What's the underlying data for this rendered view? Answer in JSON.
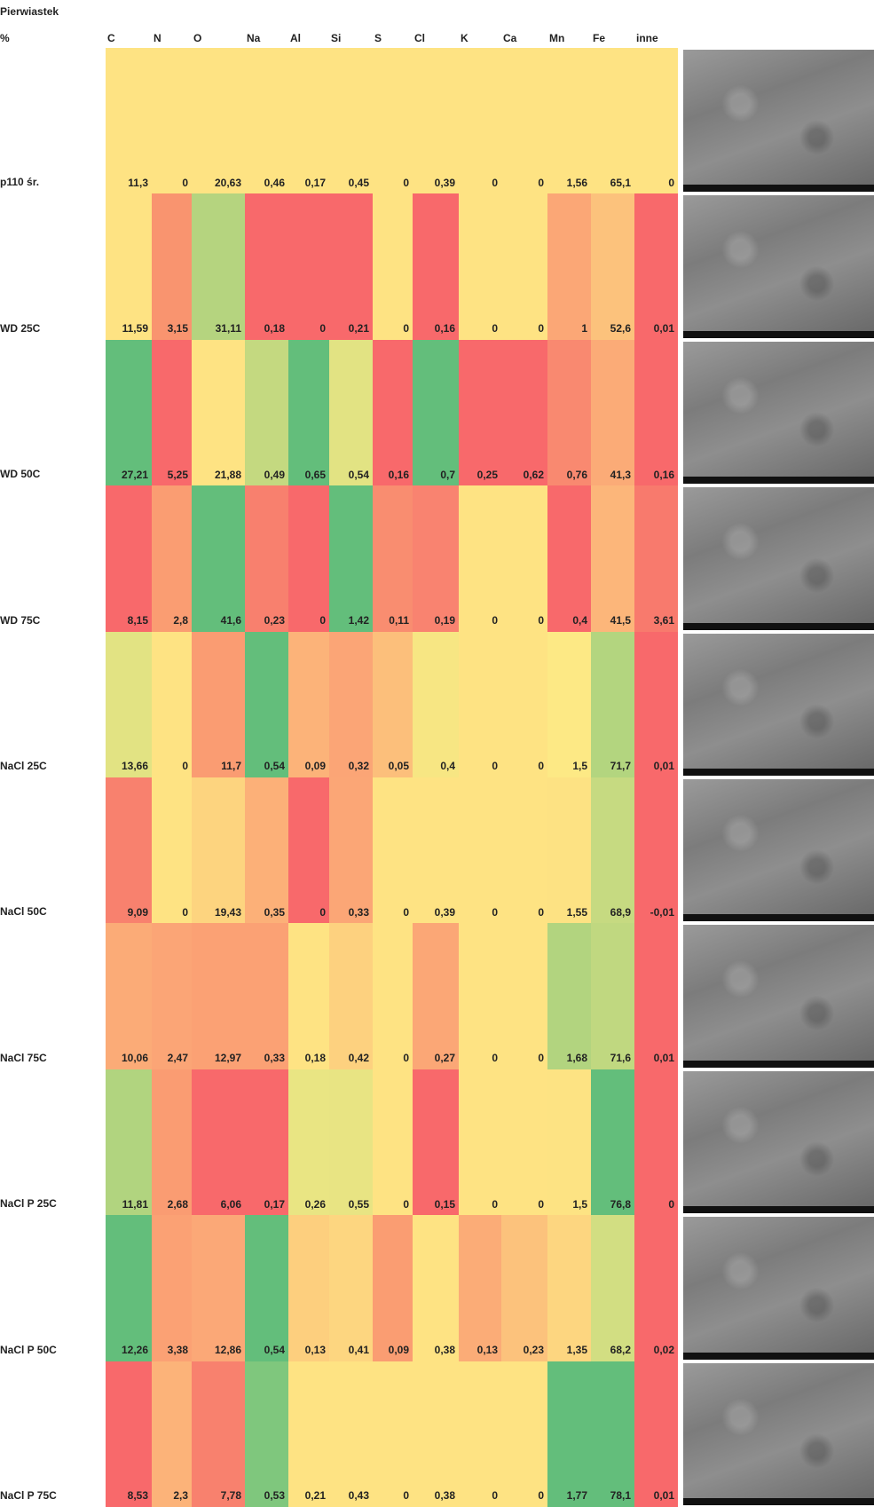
{
  "table": {
    "header": {
      "title": "Pierwiastek",
      "unit": "%",
      "columns": [
        "C",
        "N",
        "O",
        "Na",
        "Al",
        "Si",
        "S",
        "Cl",
        "K",
        "Ca",
        "Mn",
        "Fe",
        "inne"
      ]
    },
    "rows": [
      {
        "label": "p110 śr.",
        "cells": [
          "11,3",
          "0",
          "20,63",
          "0,46",
          "0,17",
          "0,45",
          "0",
          "0,39",
          "0",
          "0",
          "1,56",
          "65,1",
          "0"
        ],
        "colors": [
          "#fee383",
          "#fee383",
          "#fee383",
          "#fee383",
          "#fee383",
          "#fee383",
          "#fee383",
          "#fee383",
          "#fee383",
          "#fee383",
          "#fee383",
          "#fee383",
          "#fee383"
        ]
      },
      {
        "label": "WD 25C",
        "cells": [
          "11,59",
          "3,15",
          "31,11",
          "0,18",
          "0",
          "0,21",
          "0",
          "0,16",
          "0",
          "0",
          "1",
          "52,6",
          "0,01"
        ],
        "colors": [
          "#fee383",
          "#f9946f",
          "#b5d47f",
          "#f8696b",
          "#f8696b",
          "#f8696b",
          "#fee383",
          "#f8696b",
          "#fee383",
          "#fee383",
          "#fba776",
          "#fcc27c",
          "#f8696b"
        ]
      },
      {
        "label": "WD 50C",
        "cells": [
          "27,21",
          "5,25",
          "21,88",
          "0,49",
          "0,65",
          "0,54",
          "0,16",
          "0,7",
          "0,25",
          "0,62",
          "0,76",
          "41,3",
          "0,16"
        ],
        "colors": [
          "#63be7b",
          "#f8696b",
          "#fee383",
          "#c4d980",
          "#63be7b",
          "#e2e383",
          "#f8696b",
          "#63be7b",
          "#f8696b",
          "#f8696b",
          "#f98970",
          "#fbab77",
          "#f8696b"
        ]
      },
      {
        "label": "WD 75C",
        "cells": [
          "8,15",
          "2,8",
          "41,6",
          "0,23",
          "0",
          "1,42",
          "0,11",
          "0,19",
          "0",
          "0",
          "0,4",
          "41,5",
          "3,61"
        ],
        "colors": [
          "#f8696b",
          "#fa9d72",
          "#63be7b",
          "#f8806e",
          "#f8696b",
          "#63be7b",
          "#f98d70",
          "#f98370",
          "#fee383",
          "#fee383",
          "#f8696b",
          "#fcb67a",
          "#f87a6d"
        ]
      },
      {
        "label": "NaCl 25C",
        "cells": [
          "13,66",
          "0",
          "11,7",
          "0,54",
          "0,09",
          "0,32",
          "0,05",
          "0,4",
          "0",
          "0",
          "1,5",
          "71,7",
          "0,01"
        ],
        "colors": [
          "#e2e383",
          "#fee383",
          "#fa9c72",
          "#63be7b",
          "#fcb379",
          "#fba576",
          "#fcbf7b",
          "#f7e683",
          "#fee383",
          "#fee383",
          "#fde985",
          "#b3d57f",
          "#f8696b"
        ]
      },
      {
        "label": "NaCl 50C",
        "cells": [
          "9,09",
          "0",
          "19,43",
          "0,35",
          "0",
          "0,33",
          "0",
          "0,39",
          "0",
          "0",
          "1,55",
          "68,9",
          "-0,01"
        ],
        "colors": [
          "#f8816e",
          "#fee383",
          "#fdd47f",
          "#fcb078",
          "#f8696b",
          "#fba676",
          "#fee383",
          "#fee383",
          "#fee383",
          "#fee383",
          "#fde283",
          "#c6da81",
          "#f8696b"
        ]
      },
      {
        "label": "NaCl 75C",
        "cells": [
          "10,06",
          "2,47",
          "12,97",
          "0,33",
          "0,18",
          "0,42",
          "0",
          "0,27",
          "0",
          "0",
          "1,68",
          "71,6",
          "0,01"
        ],
        "colors": [
          "#fbab77",
          "#fba576",
          "#fba174",
          "#fba174",
          "#fee383",
          "#fdd17f",
          "#fee383",
          "#fba776",
          "#fee383",
          "#fee383",
          "#b2d47f",
          "#c0d880",
          "#f8696b"
        ]
      },
      {
        "label": "NaCl P 25C",
        "cells": [
          "11,81",
          "2,68",
          "6,06",
          "0,17",
          "0,26",
          "0,55",
          "0",
          "0,15",
          "0",
          "0",
          "1,5",
          "76,8",
          "0"
        ],
        "colors": [
          "#b1d47f",
          "#fa9c72",
          "#f8696b",
          "#f8696b",
          "#e9e583",
          "#e8e483",
          "#fee383",
          "#f8696b",
          "#fee383",
          "#fee383",
          "#fde383",
          "#63be7b",
          "#f8696b"
        ]
      },
      {
        "label": "NaCl P 50C",
        "cells": [
          "12,26",
          "3,38",
          "12,86",
          "0,54",
          "0,13",
          "0,41",
          "0,09",
          "0,38",
          "0,13",
          "0,23",
          "1,35",
          "68,2",
          "0,02"
        ],
        "colors": [
          "#63be7b",
          "#fba174",
          "#fba877",
          "#63be7b",
          "#fdcf7e",
          "#fdd680",
          "#fa9d72",
          "#fee383",
          "#fbac77",
          "#fcc27c",
          "#fdd680",
          "#d2de82",
          "#f8696b"
        ]
      },
      {
        "label": "NaCl P 75C",
        "cells": [
          "8,53",
          "2,3",
          "7,78",
          "0,53",
          "0,21",
          "0,43",
          "0",
          "0,38",
          "0",
          "0",
          "1,77",
          "78,1",
          "0,01"
        ],
        "colors": [
          "#f8696b",
          "#fcb379",
          "#f8816e",
          "#7fc77d",
          "#fee383",
          "#fee383",
          "#fee383",
          "#fee383",
          "#fee383",
          "#fee383",
          "#63be7b",
          "#63be7b",
          "#f8696b"
        ]
      }
    ]
  }
}
